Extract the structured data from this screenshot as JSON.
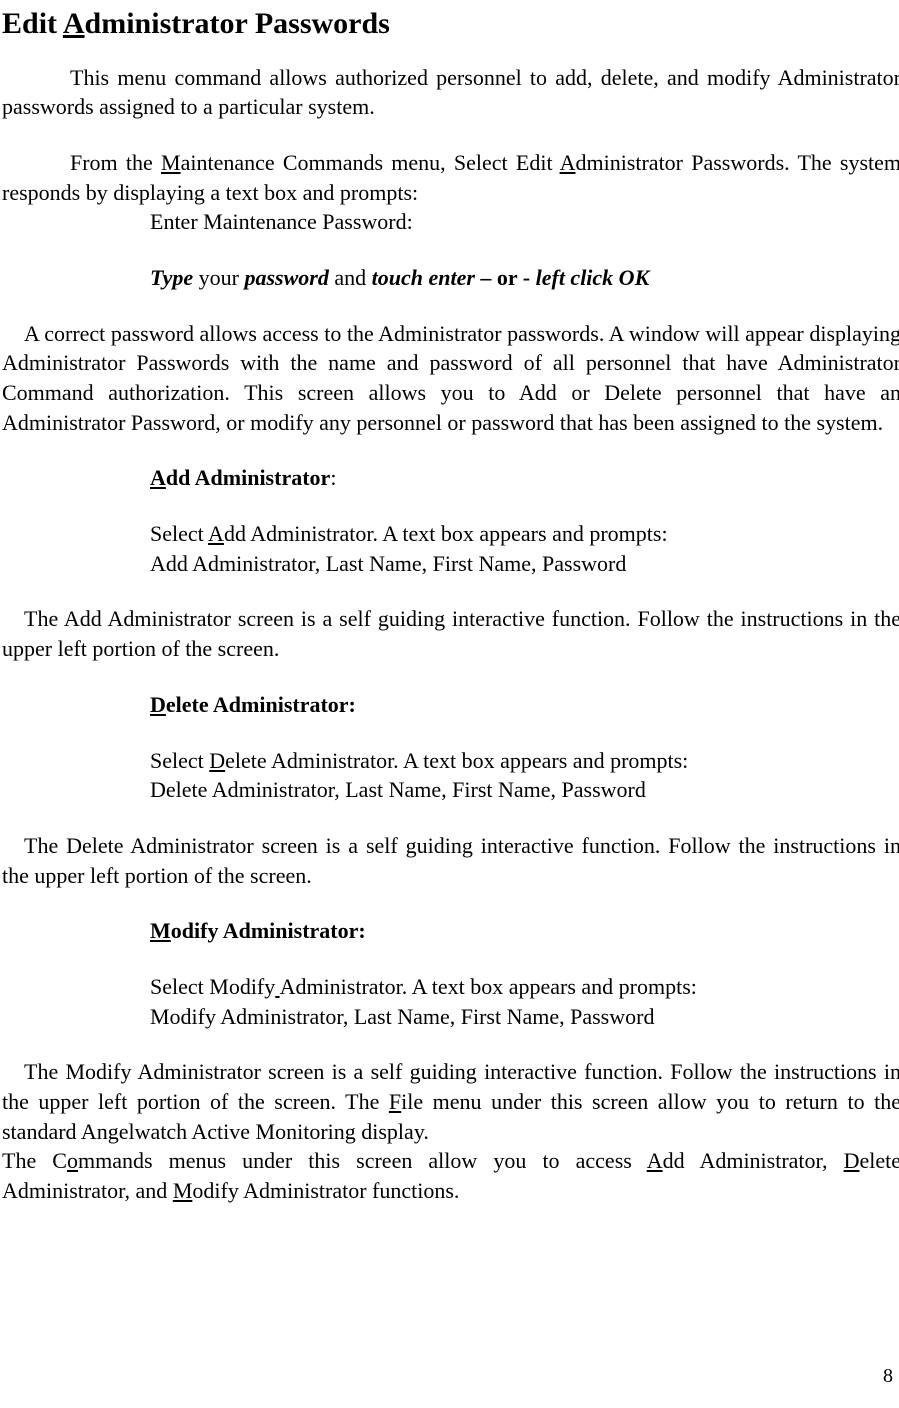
{
  "title_pre": "Edit ",
  "title_u": "A",
  "title_post": "dministrator Passwords",
  "p1": "This menu command allows authorized personnel to add, delete, and modify Administrator passwords assigned to a particular system.",
  "p2_a": "From the ",
  "p2_u1": "M",
  "p2_b": "aintenance Commands menu, Select Edit ",
  "p2_u2": "A",
  "p2_c": "dministrator Passwords. The system responds by displaying a text box and prompts:",
  "p2_prompt": "Enter Maintenance Password:",
  "instr_a": "Type",
  "instr_b": " your ",
  "instr_c": "password",
  "instr_d": " and ",
  "instr_e": "touch enter",
  "instr_f": " – or -  ",
  "instr_g": "left click OK",
  "p3": "A correct password allows access to the Administrator passwords. A window will appear displaying Administrator Passwords with the name and password of  all personnel that have Administrator Command authorization. This screen allows you to Add or Delete personnel that have an Administrator Password, or modify any personnel or password that has been assigned to the system.",
  "add_h_u": "A",
  "add_h_rest": "dd Administrator",
  "add_h_colon": ":",
  "add_l1_a": "Select ",
  "add_l1_u": "A",
  "add_l1_b": "dd Administrator. A text box appears and prompts:",
  "add_l2": "Add Administrator, Last Name, First Name, Password",
  "add_p": "The Add Administrator screen is a self guiding interactive function. Follow the instructions in the upper left portion of the screen.",
  "del_h_u": "D",
  "del_h_rest": "elete Administrator:",
  "del_l1_a": "Select ",
  "del_l1_u": "D",
  "del_l1_b": "elete Administrator. A text box appears and prompts:",
  "del_l2": "Delete Administrator, Last Name, First Name, Password",
  "del_p": "The Delete Administrator screen is a self guiding interactive function. Follow the instructions in the upper left portion of the screen.",
  "mod_h_u": "M",
  "mod_h_rest": "odify Administrator:",
  "mod_l1_a": "Select Modify",
  "mod_l1_sp": " ",
  "mod_l1_b": "Administrator. A text box appears and prompts:",
  "mod_l2": "Modify Administrator, Last Name, First Name, Password",
  "mod_p_a": "The Modify Administrator screen is a self guiding interactive function. Follow the instructions in the upper left portion of the screen. The ",
  "mod_p_u": "F",
  "mod_p_b": "ile menu under this screen allow you to return to the standard Angelwatch Active Monitoring display.",
  "cmd_a": "The C",
  "cmd_u1": "o",
  "cmd_b": "mmands menus under this screen allow you to access ",
  "cmd_u2": "A",
  "cmd_c": "dd Administrator, ",
  "cmd_u3": "D",
  "cmd_d": "elete Administrator, and ",
  "cmd_u4": "M",
  "cmd_e": "odify Administrator functions.",
  "pagenum": "8"
}
